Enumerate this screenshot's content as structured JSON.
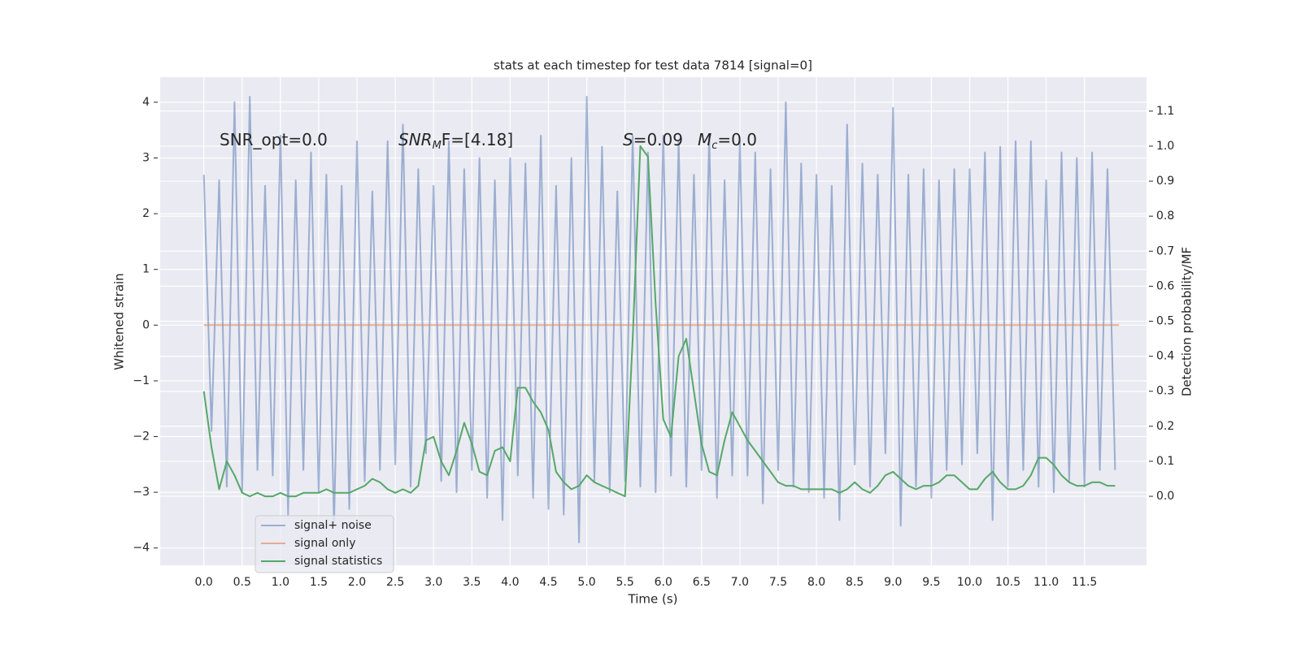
{
  "chart_data": {
    "type": "line",
    "title": "stats at each timestep for test data 7814 [signal=0]",
    "xlabel": "Time (s)",
    "ylabel": "Whitened strain",
    "y2label": "Detection probability/MF",
    "grid": true,
    "legend": "lower left",
    "xlim": [
      -0.57,
      12.31
    ],
    "ylim": [
      -4.31,
      4.45
    ],
    "y2lim": [
      -0.197,
      1.197
    ],
    "xticks": [
      {
        "value": 0,
        "label": "0.0"
      },
      0.5,
      {
        "value": 1,
        "label": "1.0"
      },
      1.5,
      {
        "value": 2,
        "label": "2.0"
      },
      2.5,
      {
        "value": 3,
        "label": "3.0"
      },
      3.5,
      {
        "value": 4,
        "label": "4.0"
      },
      4.5,
      {
        "value": 5,
        "label": "5.0"
      },
      5.5,
      {
        "value": 6,
        "label": "6.0"
      },
      6.5,
      {
        "value": 7,
        "label": "7.0"
      },
      7.5,
      {
        "value": 8,
        "label": "8.0"
      },
      8.5,
      {
        "value": 9,
        "label": "9.0"
      },
      9.5,
      {
        "value": 10,
        "label": "10.0"
      },
      10.5,
      {
        "value": 11,
        "label": "11.0"
      },
      11.5
    ],
    "yticks": [
      {
        "value": -4,
        "label": "−4"
      },
      {
        "value": -3,
        "label": "−3"
      },
      {
        "value": -2,
        "label": "−2"
      },
      {
        "value": -1,
        "label": "−1"
      },
      0,
      1,
      2,
      3,
      4
    ],
    "y2ticks": [
      {
        "value": 0,
        "label": "0.0"
      },
      0.1,
      0.2,
      0.3,
      0.4,
      0.5,
      0.6,
      0.7,
      0.8,
      0.9,
      {
        "value": 1,
        "label": "1.0"
      },
      1.1
    ],
    "annotations": [
      {
        "main": "SNR_opt=0.0"
      },
      {
        "main": "SNR",
        "sub": "M",
        "rest": "F=[4.18]"
      },
      {
        "main": "S",
        "rest": "=0.09"
      },
      {
        "main": "M",
        "sub": "c",
        "rest": "=0.0"
      }
    ],
    "x": [
      0,
      0.1,
      0.2,
      0.3,
      0.4,
      0.5,
      0.6,
      0.7,
      0.8,
      0.9,
      1,
      1.1,
      1.2,
      1.3,
      1.4,
      1.5,
      1.6,
      1.7,
      1.8,
      1.9,
      2,
      2.1,
      2.2,
      2.3,
      2.4,
      2.5,
      2.6,
      2.7,
      2.8,
      2.9,
      3,
      3.1,
      3.2,
      3.3,
      3.4,
      3.5,
      3.6,
      3.7,
      3.8,
      3.9,
      4,
      4.1,
      4.2,
      4.3,
      4.4,
      4.5,
      4.6,
      4.7,
      4.8,
      4.9,
      5,
      5.1,
      5.2,
      5.3,
      5.4,
      5.5,
      5.6,
      5.7,
      5.8,
      5.9,
      6,
      6.1,
      6.2,
      6.3,
      6.4,
      6.5,
      6.6,
      6.7,
      6.8,
      6.9,
      7,
      7.1,
      7.2,
      7.3,
      7.4,
      7.5,
      7.6,
      7.7,
      7.8,
      7.9,
      8,
      8.1,
      8.2,
      8.3,
      8.4,
      8.5,
      8.6,
      8.7,
      8.8,
      8.9,
      9,
      9.1,
      9.2,
      9.3,
      9.4,
      9.5,
      9.6,
      9.7,
      9.8,
      9.9,
      10,
      10.1,
      10.2,
      10.3,
      10.4,
      10.5,
      10.6,
      10.7,
      10.8,
      10.9,
      11,
      11.1,
      11.2,
      11.3,
      11.4,
      11.5,
      11.6,
      11.7,
      11.8,
      11.9
    ],
    "series": [
      {
        "name": "signal+ noise",
        "color": "#4c72b0",
        "axis": "y",
        "values": [
          2.7,
          -1.9,
          2.6,
          -2.9,
          4.0,
          -3.0,
          4.1,
          -2.6,
          2.5,
          -2.7,
          3.4,
          -3.4,
          2.6,
          -2.6,
          3.1,
          -3.0,
          2.7,
          -3.6,
          2.5,
          -3.3,
          3.3,
          -2.8,
          2.4,
          -2.6,
          3.3,
          -2.5,
          3.6,
          -2.9,
          2.8,
          -2.3,
          2.5,
          -2.8,
          3.3,
          -3.0,
          2.8,
          -2.6,
          3.0,
          -3.1,
          2.6,
          -3.5,
          3.0,
          -2.7,
          2.9,
          -3.1,
          3.4,
          -3.3,
          2.5,
          -3.4,
          3.0,
          -3.9,
          4.1,
          -2.8,
          3.2,
          -3.0,
          2.4,
          -2.8,
          3.4,
          -2.9,
          3.1,
          -3.0,
          3.4,
          -2.7,
          3.3,
          -2.9,
          2.7,
          -2.6,
          3.4,
          -3.1,
          2.6,
          -2.7,
          3.3,
          -2.7,
          3.1,
          -3.2,
          2.8,
          -2.6,
          4.0,
          -2.9,
          2.9,
          -3.0,
          2.7,
          -3.1,
          2.5,
          -3.5,
          3.6,
          -2.5,
          2.9,
          -2.9,
          2.7,
          -2.3,
          3.9,
          -3.6,
          2.7,
          -2.9,
          2.8,
          -3.1,
          2.6,
          -2.6,
          2.8,
          -2.5,
          2.8,
          -2.3,
          3.1,
          -3.5,
          3.2,
          -2.9,
          3.3,
          -2.6,
          3.3,
          -2.9,
          2.6,
          -3.0,
          3.1,
          -2.8,
          3.0,
          -2.9,
          3.1,
          -2.6,
          2.8,
          -2.6
        ]
      },
      {
        "name": "signal only",
        "color": "#dd8452",
        "axis": "y",
        "x": [
          0,
          11.95
        ],
        "values": [
          0,
          0
        ]
      },
      {
        "name": "signal statistics",
        "color": "#55a868",
        "axis": "y2",
        "values": [
          0.3,
          0.14,
          0.02,
          0.1,
          0.06,
          0.01,
          0.0,
          0.01,
          0.0,
          0.0,
          0.01,
          0.0,
          0.0,
          0.01,
          0.01,
          0.01,
          0.02,
          0.01,
          0.01,
          0.01,
          0.02,
          0.03,
          0.05,
          0.04,
          0.02,
          0.01,
          0.02,
          0.01,
          0.03,
          0.16,
          0.17,
          0.1,
          0.06,
          0.13,
          0.21,
          0.15,
          0.07,
          0.06,
          0.13,
          0.14,
          0.1,
          0.31,
          0.31,
          0.27,
          0.24,
          0.19,
          0.07,
          0.04,
          0.02,
          0.03,
          0.06,
          0.04,
          0.03,
          0.02,
          0.01,
          0.0,
          0.45,
          1.0,
          0.97,
          0.55,
          0.22,
          0.17,
          0.4,
          0.45,
          0.3,
          0.15,
          0.07,
          0.06,
          0.16,
          0.24,
          0.2,
          0.16,
          0.13,
          0.1,
          0.07,
          0.04,
          0.03,
          0.03,
          0.02,
          0.02,
          0.02,
          0.02,
          0.02,
          0.01,
          0.02,
          0.04,
          0.02,
          0.01,
          0.03,
          0.06,
          0.07,
          0.05,
          0.03,
          0.02,
          0.03,
          0.03,
          0.04,
          0.06,
          0.06,
          0.04,
          0.02,
          0.02,
          0.05,
          0.07,
          0.04,
          0.02,
          0.02,
          0.03,
          0.06,
          0.11,
          0.11,
          0.09,
          0.06,
          0.04,
          0.03,
          0.03,
          0.04,
          0.04,
          0.03,
          0.03
        ]
      }
    ]
  }
}
